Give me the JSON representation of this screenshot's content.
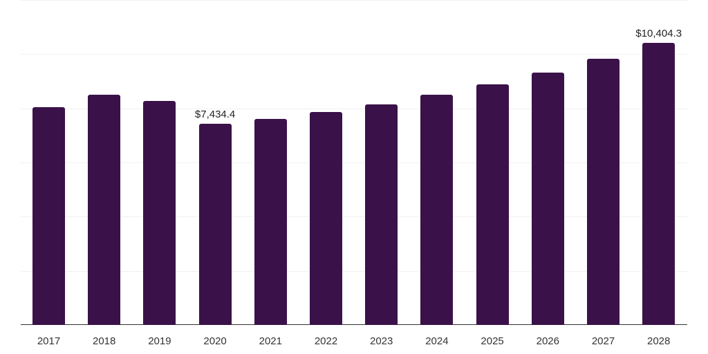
{
  "chart_data": {
    "type": "bar",
    "title": "",
    "xlabel": "",
    "ylabel": "",
    "categories": [
      "2017",
      "2018",
      "2019",
      "2020",
      "2021",
      "2022",
      "2023",
      "2024",
      "2025",
      "2026",
      "2027",
      "2028"
    ],
    "values": [
      8043,
      8502,
      8272,
      7434.4,
      7608,
      7864,
      8145,
      8502,
      8885,
      9319,
      9830,
      10404.3
    ],
    "ylim": [
      0,
      12000
    ],
    "grid": true,
    "gridlines": [
      0,
      2000,
      4000,
      6000,
      8000,
      10000,
      12000
    ],
    "legend": null,
    "annotations": [
      {
        "category": "2020",
        "text": "$7,434.4"
      },
      {
        "category": "2028",
        "text": "$10,404.3"
      }
    ],
    "bar_color": "#3a1249"
  }
}
